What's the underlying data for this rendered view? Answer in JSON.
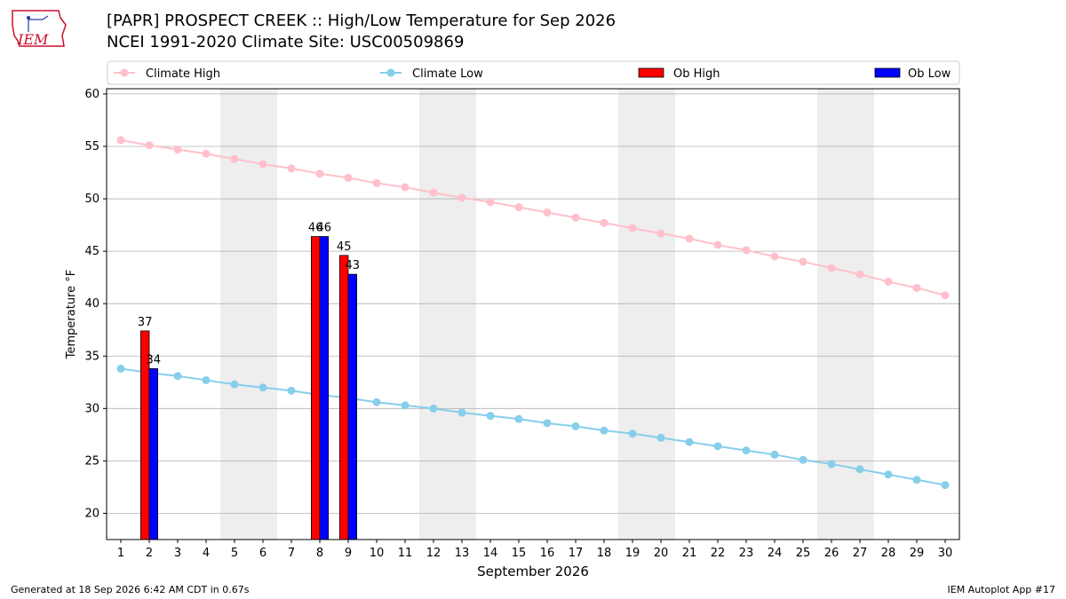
{
  "header": {
    "title_line1": "[PAPR] PROSPECT CREEK :: High/Low Temperature for Sep 2026",
    "title_line2": "NCEI 1991-2020 Climate Site: USC00509869",
    "logo_text": "IEM"
  },
  "footer": {
    "generated": "Generated at 18 Sep 2026 6:42 AM CDT in 0.67s",
    "app": "IEM Autoplot App #17"
  },
  "colors": {
    "climate_high": "#ffc0cb",
    "climate_low": "#87ceeb",
    "ob_high": "#ff0000",
    "ob_low": "#0000ff",
    "weekend_shade": "#eeeeee",
    "grid": "#b0b0b0",
    "logo": "#c8102e"
  },
  "chart_data": {
    "type": "bar",
    "xlabel": "September 2026",
    "ylabel": "Temperature °F",
    "xlim": [
      0.5,
      30.5
    ],
    "ylim": [
      17.5,
      60.5
    ],
    "yticks": [
      20,
      25,
      30,
      35,
      40,
      45,
      50,
      55,
      60
    ],
    "x": [
      1,
      2,
      3,
      4,
      5,
      6,
      7,
      8,
      9,
      10,
      11,
      12,
      13,
      14,
      15,
      16,
      17,
      18,
      19,
      20,
      21,
      22,
      23,
      24,
      25,
      26,
      27,
      28,
      29,
      30
    ],
    "shaded_days": [
      5,
      6,
      12,
      13,
      19,
      20,
      26,
      27
    ],
    "grid": "horizontal",
    "legend": {
      "placement": "top",
      "entries": [
        "Climate High",
        "Climate Low",
        "Ob High",
        "Ob Low"
      ]
    },
    "series": [
      {
        "name": "Climate High",
        "kind": "line",
        "values": [
          55.6,
          55.1,
          54.7,
          54.3,
          53.8,
          53.3,
          52.9,
          52.4,
          52.0,
          51.5,
          51.1,
          50.6,
          50.1,
          49.7,
          49.2,
          48.7,
          48.2,
          47.7,
          47.2,
          46.7,
          46.2,
          45.6,
          45.1,
          44.5,
          44.0,
          43.4,
          42.8,
          42.1,
          41.5,
          40.8
        ]
      },
      {
        "name": "Climate Low",
        "kind": "line",
        "values": [
          33.8,
          33.4,
          33.1,
          32.7,
          32.3,
          32.0,
          31.7,
          31.3,
          31.0,
          30.6,
          30.3,
          30.0,
          29.6,
          29.3,
          29.0,
          28.6,
          28.3,
          27.9,
          27.6,
          27.2,
          26.8,
          26.4,
          26.0,
          25.6,
          25.1,
          24.7,
          24.2,
          23.7,
          23.2,
          22.7
        ]
      },
      {
        "name": "Ob High",
        "kind": "bar",
        "points": [
          {
            "day": 2,
            "value": 37.4,
            "label": "37"
          },
          {
            "day": 8,
            "value": 46.4,
            "label": "46"
          },
          {
            "day": 9,
            "value": 44.6,
            "label": "45"
          }
        ]
      },
      {
        "name": "Ob Low",
        "kind": "bar",
        "points": [
          {
            "day": 2,
            "value": 33.8,
            "label": "34"
          },
          {
            "day": 8,
            "value": 46.4,
            "label": "46"
          },
          {
            "day": 9,
            "value": 42.8,
            "label": "43"
          }
        ]
      }
    ]
  }
}
